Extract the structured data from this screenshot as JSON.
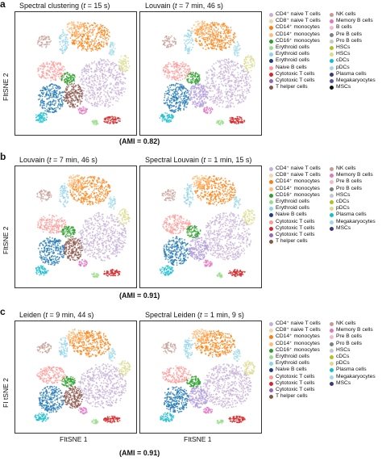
{
  "rows": [
    {
      "letter": "a",
      "panels": [
        {
          "title": "Spectral clustering (t = 15 s)",
          "prefix": "Spectral clustering (",
          "t": "t",
          "rest": " = 15 s)"
        },
        {
          "title": "Louvain (t = 7 min, 46 s)",
          "prefix": "Louvain (",
          "t": "t",
          "rest": " = 7 min, 46 s)"
        }
      ],
      "ylabel": "FItSNE 2",
      "ami": "(AMI = 0.82)",
      "legend": {
        "col1": [
          "CD4⁺ naive T cells",
          "CD8⁺ naive T cells",
          "CD14⁺ monocytes",
          "CD14⁺ monocytes",
          "CD16⁺ monocytes",
          "Erythroid cells",
          "Erythroid cells",
          "Erythroid cells",
          "Naive B cells",
          "Cytotoxic T cells",
          "Cytotoxic T cells",
          "T helper cells"
        ],
        "col2": [
          "NK cells",
          "Memory B cells",
          "B cells",
          "Pre B cells",
          "Pro B cells",
          "HSCs",
          "HSCs",
          "cDCs",
          "pDCs",
          "Plasma cells",
          "Megakaryocytes",
          "MSCs"
        ]
      }
    },
    {
      "letter": "b",
      "panels": [
        {
          "title": "Louvain (t = 7 min, 46 s)",
          "prefix": "Louvain (",
          "t": "t",
          "rest": " = 7 min, 46 s)"
        },
        {
          "title": "Spectral Louvain (t = 1 min, 15 s)",
          "prefix": "Spectral Louvain (",
          "t": "t",
          "rest": " = 1 min, 15 s)"
        }
      ],
      "ylabel": "FItSNE 2",
      "ami": "(AMI = 0.91)",
      "legend": {
        "col1": [
          "CD4⁺ naive T cells",
          "CD8⁺ naive T cells",
          "CD14⁺ monocytes",
          "CD14⁺ monocytes",
          "CD16⁺ monocytes",
          "Erythroid cells",
          "Erythroid cells",
          "Naive B cells",
          "Cytotoxic T cells",
          "Cytotoxic T cells",
          "Cytotoxic T cells",
          "T helper cells"
        ],
        "col2": [
          "NK cells",
          "Memory B cells",
          "Pre B cells",
          "Pro B cells",
          "HSCs",
          "cDCs",
          "pDCs",
          "Plasma cells",
          "Megakaryocytes",
          "MSCs"
        ]
      }
    },
    {
      "letter": "c",
      "panels": [
        {
          "title": "Leiden (t = 9 min, 44 s)",
          "prefix": "Leiden (",
          "t": "t",
          "rest": " = 9 min, 44 s)"
        },
        {
          "title": "Spectral Leiden (t = 1 min, 9 s)",
          "prefix": "Spectral Leiden (",
          "t": "t",
          "rest": " = 1 min, 9 s)"
        }
      ],
      "ylabel": "FI tSNE 2",
      "xlabels": [
        "FItSNE 1",
        "FItSNE 1"
      ],
      "ami": "(AMI = 0.91)",
      "legend": {
        "col1": [
          "CD4⁺ naive T cells",
          "CD8⁺ naive T cells",
          "CD14⁺ monocytes",
          "CD14⁺ monocytes",
          "CD16⁺ monocytes",
          "Erythroid cells",
          "Erythroid cells",
          "Naive B cells",
          "Cytotoxic T cells",
          "Cytotoxic T cells",
          "Cytotoxic T cells",
          "T helper cells"
        ],
        "col2": [
          "NK cells",
          "Memory B cells",
          "Pre B cells",
          "Pro B cells",
          "HSCs",
          "cDCs",
          "pDCs",
          "Plasma cells",
          "Megakaryocytes",
          "MSCs"
        ]
      }
    }
  ],
  "colors": {
    "col1": [
      "#c5b0d5",
      "#f5d5a8",
      "#ff7f0e",
      "#ffbb78",
      "#2ca02c",
      "#98df8a",
      "#8fd3e8",
      "#1f3c88",
      "#ff9896",
      "#d62728",
      "#9467bd",
      "#8c564b"
    ],
    "col2": [
      "#c49c94",
      "#e377c2",
      "#f7b6d2",
      "#7f7f7f",
      "#c7c7c7",
      "#bcbd22",
      "#dbdb8d",
      "#17becf",
      "#9edae5",
      "#393b79",
      "#5254a3",
      "#111111"
    ]
  }
}
